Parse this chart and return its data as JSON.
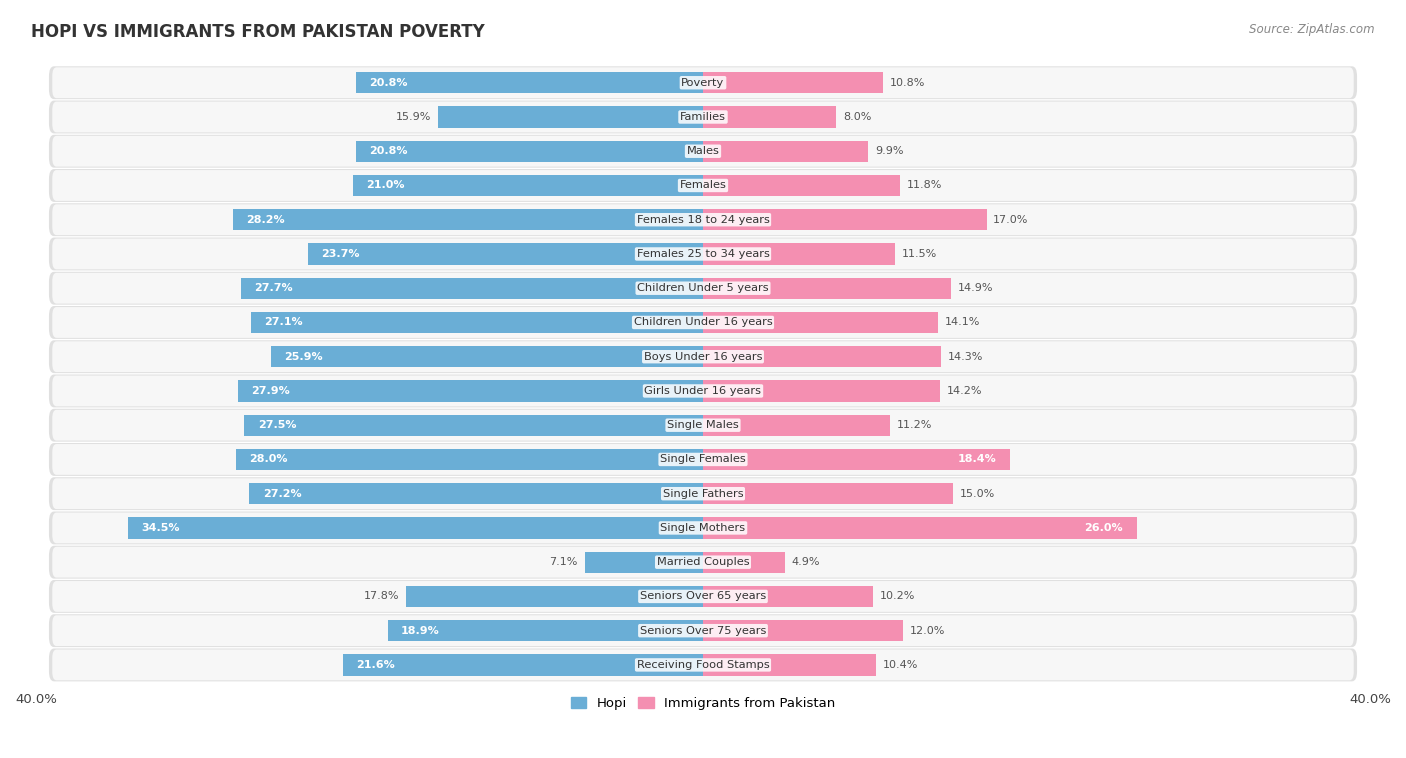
{
  "title": "HOPI VS IMMIGRANTS FROM PAKISTAN POVERTY",
  "source": "Source: ZipAtlas.com",
  "categories": [
    "Poverty",
    "Families",
    "Males",
    "Females",
    "Females 18 to 24 years",
    "Females 25 to 34 years",
    "Children Under 5 years",
    "Children Under 16 years",
    "Boys Under 16 years",
    "Girls Under 16 years",
    "Single Males",
    "Single Females",
    "Single Fathers",
    "Single Mothers",
    "Married Couples",
    "Seniors Over 65 years",
    "Seniors Over 75 years",
    "Receiving Food Stamps"
  ],
  "hopi_values": [
    20.8,
    15.9,
    20.8,
    21.0,
    28.2,
    23.7,
    27.7,
    27.1,
    25.9,
    27.9,
    27.5,
    28.0,
    27.2,
    34.5,
    7.1,
    17.8,
    18.9,
    21.6
  ],
  "pakistan_values": [
    10.8,
    8.0,
    9.9,
    11.8,
    17.0,
    11.5,
    14.9,
    14.1,
    14.3,
    14.2,
    11.2,
    18.4,
    15.0,
    26.0,
    4.9,
    10.2,
    12.0,
    10.4
  ],
  "hopi_color": "#6aaed6",
  "pakistan_color": "#f48fb1",
  "x_max": 40.0,
  "legend_hopi": "Hopi",
  "legend_pakistan": "Immigrants from Pakistan",
  "bg_color": "#ffffff",
  "row_bg_color": "#e8e8e8",
  "row_inner_color": "#f5f5f5"
}
